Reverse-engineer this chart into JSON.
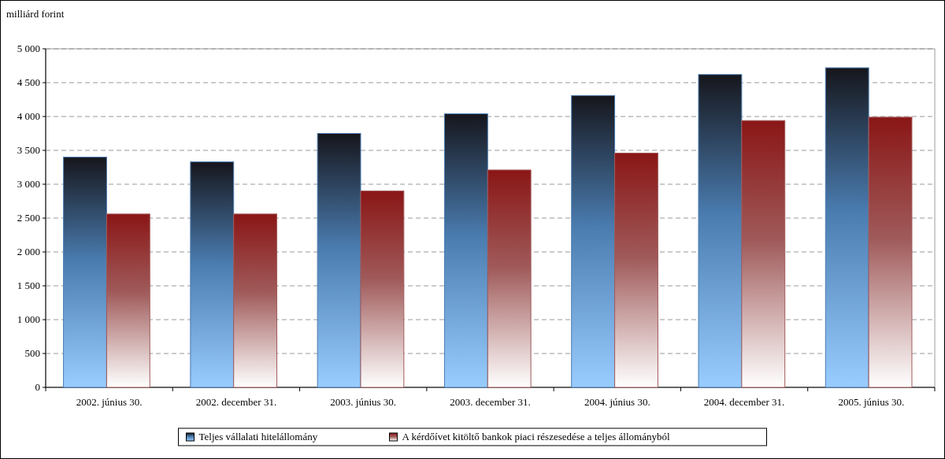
{
  "chart_data": {
    "type": "bar",
    "ylabel": "milliárd forint",
    "categories": [
      "2002. június 30.",
      "2002. december 31.",
      "2003. június 30.",
      "2003. december 31.",
      "2004. június 30.",
      "2004. december 31.",
      "2005. június 30."
    ],
    "series": [
      {
        "name": "Teljes vállalati hitelállomány",
        "color": "#4a7cb0",
        "values": [
          3400,
          3330,
          3750,
          4040,
          4310,
          4620,
          4720
        ]
      },
      {
        "name": "A kérdőívet kitöltő bankok piaci részesedése a teljes állományból",
        "color": "#a05a5a",
        "values": [
          2560,
          2560,
          2900,
          3210,
          3460,
          3940,
          3990
        ]
      }
    ],
    "ylim": [
      0,
      5000
    ],
    "yticks": [
      0,
      {
        "value": 500,
        "label": "500"
      },
      {
        "value": 1000,
        "label": "1 000"
      },
      {
        "value": 1500,
        "label": "1 500"
      },
      {
        "value": 2000,
        "label": "2 000"
      },
      {
        "value": 2500,
        "label": "2 500"
      },
      {
        "value": 3000,
        "label": "3 000"
      },
      {
        "value": 3500,
        "label": "3 500"
      },
      {
        "value": 4000,
        "label": "4 000"
      },
      {
        "value": 4500,
        "label": "4 500"
      },
      {
        "value": 5000,
        "label": "5 000"
      }
    ],
    "grid": "y",
    "legend": "bottom"
  }
}
